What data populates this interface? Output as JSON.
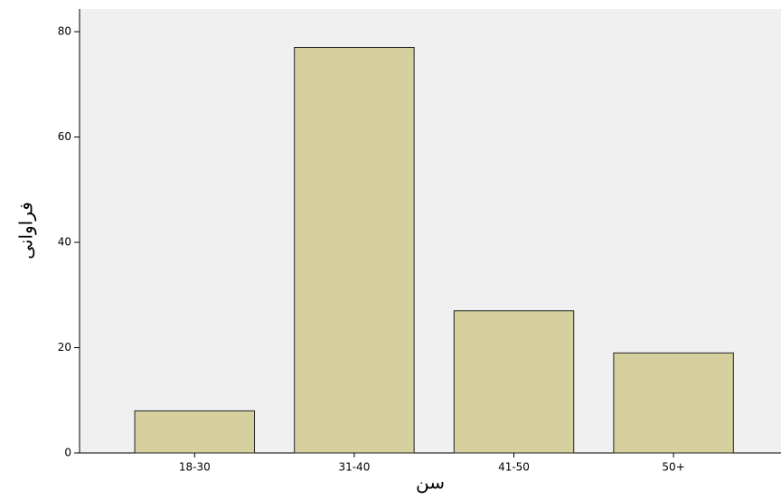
{
  "chart_data": {
    "type": "bar",
    "x_label": "سن",
    "y_label": "فراوانی",
    "categories": [
      "18-30",
      "31-40",
      "41-50",
      "50+"
    ],
    "values": [
      8,
      77,
      27,
      19
    ],
    "color": "#d5d09d",
    "ylim": [
      0,
      84.3
    ],
    "yticks": [
      0,
      20,
      40,
      60,
      80
    ]
  }
}
